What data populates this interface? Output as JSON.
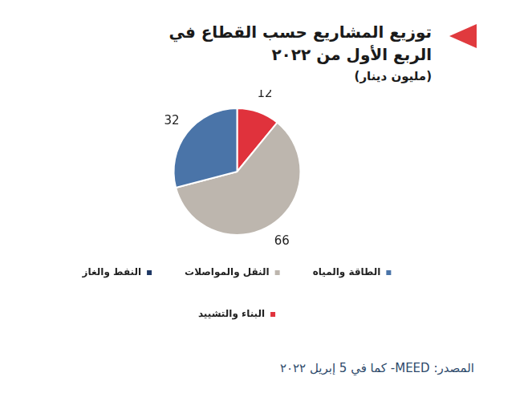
{
  "chart_data": {
    "type": "pie",
    "title": "توزيع المشاريع حسب القطاع في الربع الأول من ٢٠٢٢",
    "subtitle": "(مليون دينار)",
    "source": "المصدر: MEED- كما في 5 إبريل ٢٠٢٢",
    "categories": [
      "البناء والتشييد",
      "النفط والغاز",
      "النقل والمواصلات",
      "الطاقة والمياه"
    ],
    "values": [
      12,
      0,
      66,
      32
    ],
    "colors": [
      "#e0323c",
      "#1f3864",
      "#bdb6ae",
      "#4a74a8"
    ],
    "legend": "bottom",
    "data_labels": true
  }
}
